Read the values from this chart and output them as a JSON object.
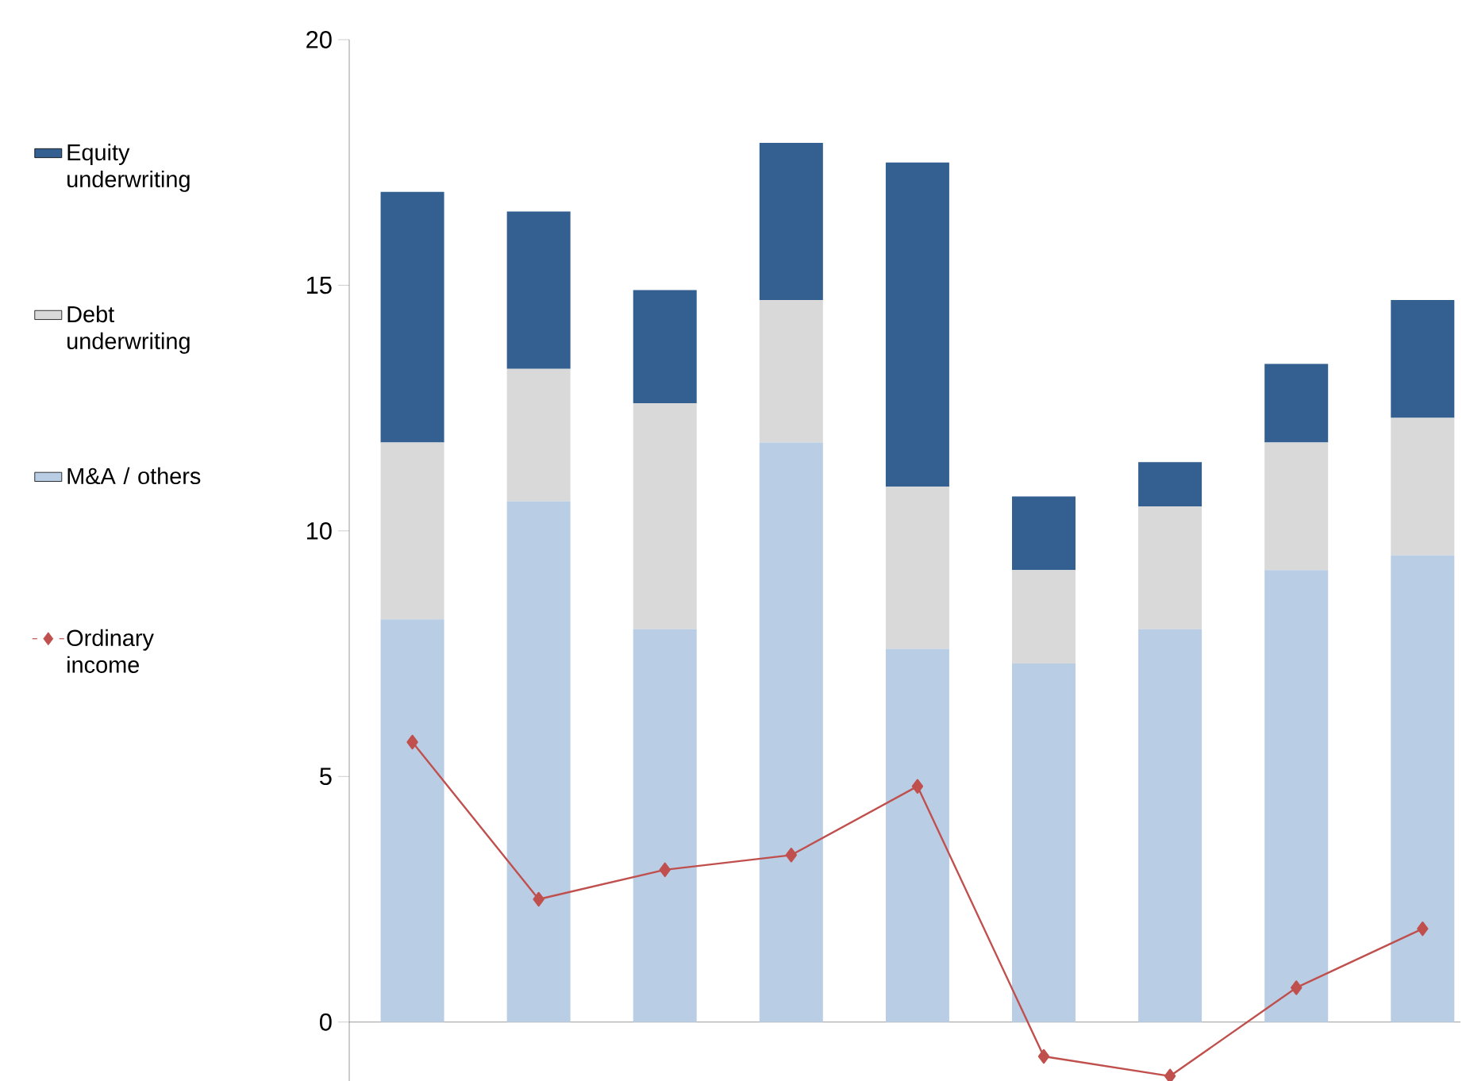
{
  "chart_data": {
    "type": "bar",
    "stacked": true,
    "categories": [
      null,
      null,
      null,
      null,
      null,
      null,
      null,
      null,
      null
    ],
    "series": [
      {
        "name": "M&A / others",
        "color": "#b9cde5",
        "values": [
          8.2,
          10.6,
          8.0,
          11.8,
          7.6,
          7.3,
          8.0,
          9.2,
          9.5
        ]
      },
      {
        "name": "Debt underwriting",
        "color": "#d9d9d9",
        "values": [
          3.6,
          2.7,
          4.6,
          2.9,
          3.3,
          1.9,
          2.5,
          2.6,
          2.8
        ]
      },
      {
        "name": "Equity underwriting",
        "color": "#335f91",
        "values": [
          5.1,
          3.2,
          2.3,
          3.2,
          6.6,
          1.5,
          0.9,
          1.6,
          2.4
        ]
      },
      {
        "name": "Ordinary income",
        "type": "line",
        "color": "#c0504d",
        "marker": "diamond",
        "values": [
          5.7,
          2.5,
          3.1,
          3.4,
          4.8,
          -0.7,
          -1.1,
          0.7,
          1.9
        ]
      }
    ],
    "ylim": [
      -1.2,
      20
    ],
    "yticks": [
      0,
      5,
      10,
      15,
      20
    ],
    "legend": "left"
  }
}
